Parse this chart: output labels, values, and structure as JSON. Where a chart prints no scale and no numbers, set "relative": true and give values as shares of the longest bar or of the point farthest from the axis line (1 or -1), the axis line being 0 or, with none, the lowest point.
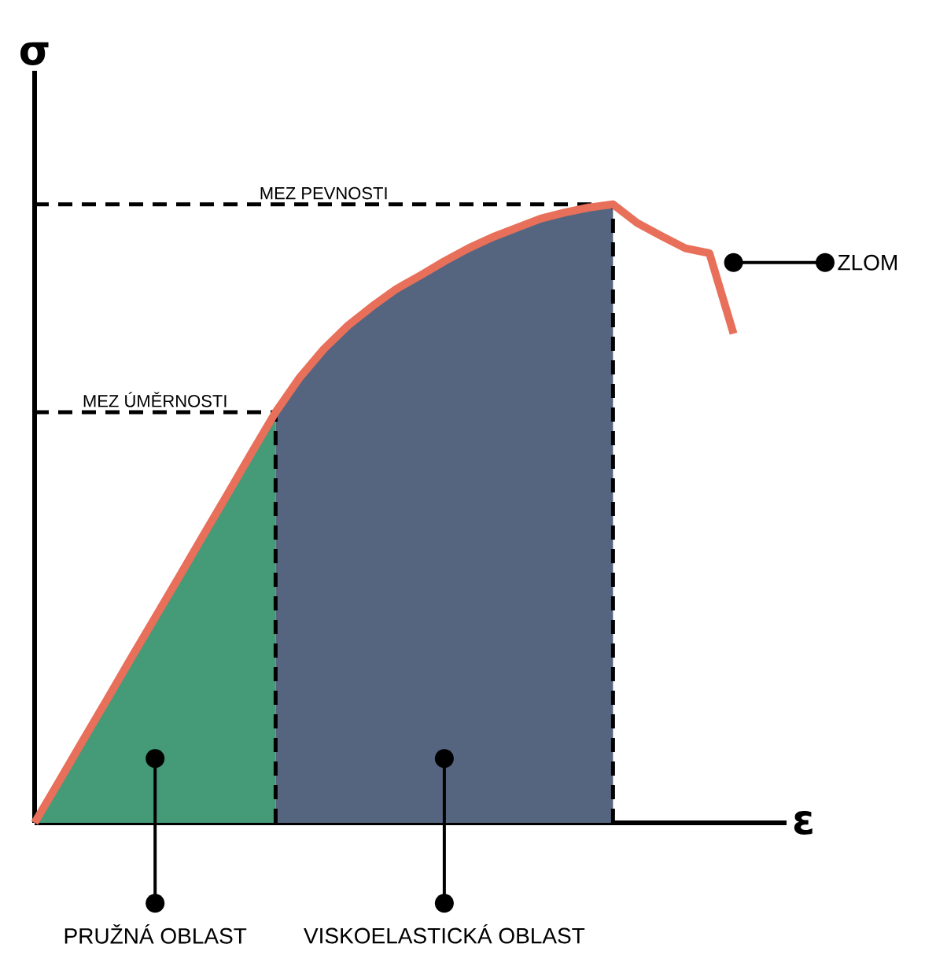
{
  "chart_data": {
    "type": "line",
    "relative": true,
    "xlabel": "ε",
    "ylabel": "σ",
    "categories": [
      null,
      null,
      null,
      null,
      null,
      null,
      null,
      null,
      null,
      null,
      null,
      null,
      null,
      null,
      null,
      null,
      null,
      null,
      null,
      null,
      null,
      null,
      null,
      null,
      null,
      null,
      null,
      null,
      null,
      null
    ],
    "series": [
      {
        "type": "area",
        "color": "#459a78",
        "values": [
          0,
          0.066,
          0.133,
          0.199,
          0.266,
          0.332,
          0.398,
          0.465,
          0.531,
          0.598,
          0.664,
          null,
          null,
          null,
          null,
          null,
          null,
          null,
          null,
          null,
          null,
          null,
          null,
          null,
          null,
          null,
          null,
          null,
          null,
          null
        ]
      },
      {
        "type": "area",
        "color": "#56657f",
        "values": [
          null,
          null,
          null,
          null,
          null,
          null,
          null,
          null,
          null,
          null,
          0.664,
          0.72,
          0.766,
          0.804,
          0.835,
          0.863,
          0.885,
          0.908,
          0.929,
          0.947,
          0.962,
          0.977,
          0.987,
          0.995,
          1,
          null,
          null,
          null,
          null,
          null
        ]
      },
      {
        "color": "#e8705a",
        "values": [
          0,
          0.066,
          0.133,
          0.199,
          0.266,
          0.332,
          0.398,
          0.465,
          0.531,
          0.598,
          0.664,
          0.72,
          0.766,
          0.804,
          0.835,
          0.863,
          0.885,
          0.908,
          0.929,
          0.947,
          0.962,
          0.977,
          0.987,
          0.995,
          1,
          0.97,
          0.949,
          0.929,
          0.921,
          0.791
        ]
      }
    ],
    "ref_lines": [
      {
        "axis": "y",
        "value": 0.664,
        "label": "MEZ ÚMĚRNOSTI",
        "line_style": "dashed"
      },
      {
        "axis": "y",
        "value": 1,
        "label": "MEZ PEVNOSTI",
        "line_style": "dashed"
      }
    ],
    "annotations": [
      "PRUŽNÁ OBLAST",
      "VISKOELASTICKÁ OBLAST",
      "ZLOM"
    ]
  }
}
